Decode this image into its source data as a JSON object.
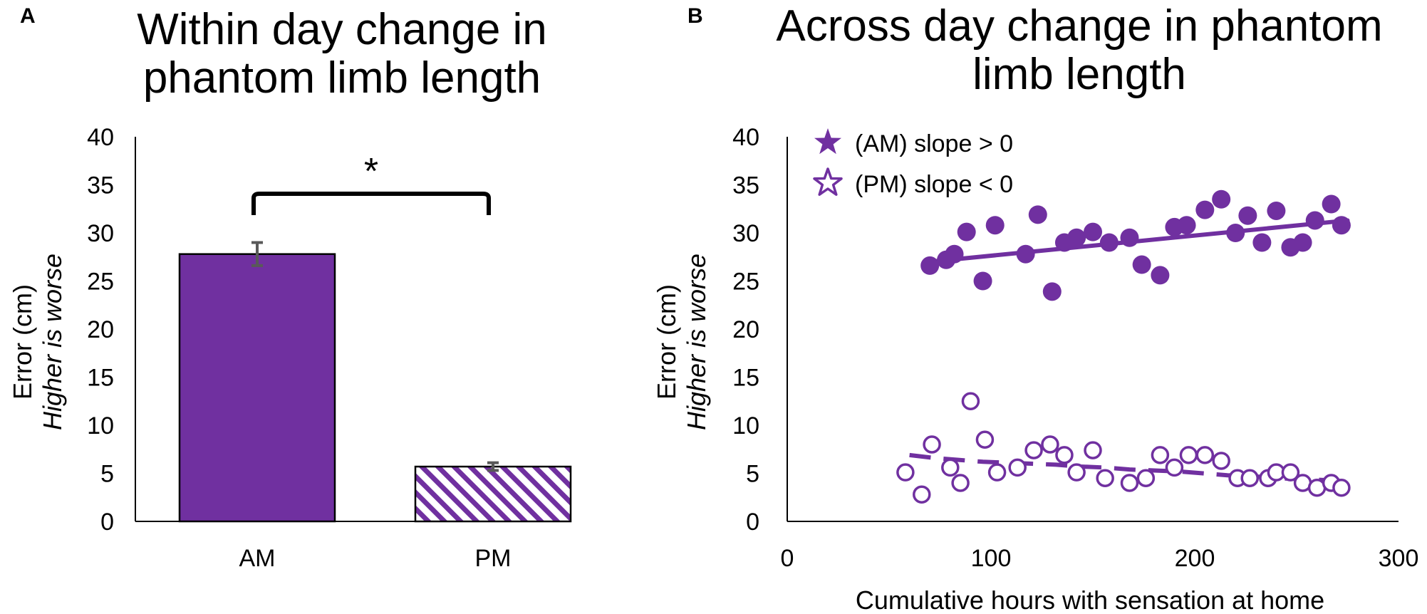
{
  "colors": {
    "purple": "#7030a0",
    "axis": "#000000",
    "errorbar": "#595959"
  },
  "chart_data": [
    {
      "panel": "A",
      "type": "bar",
      "title_lines": [
        "Within day change in",
        "phantom limb length"
      ],
      "ylabel_lines": [
        "Error (cm)",
        "Higher is worse"
      ],
      "xlabel": "",
      "ylim": [
        0,
        40
      ],
      "yticks": [
        "0",
        "5",
        "10",
        "15",
        "20",
        "25",
        "30",
        "35",
        "40"
      ],
      "categories": [
        "AM",
        "PM"
      ],
      "values": [
        27.8,
        5.7
      ],
      "errors": [
        1.2,
        0.4
      ],
      "fills": [
        "solid",
        "hatched"
      ],
      "significance": "*"
    },
    {
      "panel": "B",
      "type": "scatter",
      "title_lines": [
        "Across day change in phantom",
        "limb length"
      ],
      "ylabel_lines": [
        "Error (cm)",
        "Higher is worse"
      ],
      "xlabel": "Cumulative hours with sensation at home",
      "xlim": [
        0,
        300
      ],
      "ylim": [
        0,
        40
      ],
      "xticks": [
        "0",
        "100",
        "200",
        "300"
      ],
      "yticks": [
        "0",
        "5",
        "10",
        "15",
        "20",
        "25",
        "30",
        "35",
        "40"
      ],
      "legend": [
        "(AM) slope > 0",
        "(PM) slope < 0"
      ],
      "series": [
        {
          "name": "AM",
          "marker": "filled-circle",
          "trendline": [
            [
              70,
              27.0
            ],
            [
              275,
              31.3
            ]
          ],
          "points": [
            [
              70,
              26.6
            ],
            [
              78,
              27.2
            ],
            [
              82,
              27.8
            ],
            [
              88,
              30.1
            ],
            [
              96,
              25.0
            ],
            [
              102,
              30.8
            ],
            [
              117,
              27.8
            ],
            [
              123,
              31.9
            ],
            [
              130,
              23.9
            ],
            [
              136,
              29.0
            ],
            [
              142,
              29.5
            ],
            [
              150,
              30.1
            ],
            [
              158,
              29.0
            ],
            [
              168,
              29.5
            ],
            [
              174,
              26.7
            ],
            [
              183,
              25.6
            ],
            [
              190,
              30.6
            ],
            [
              196,
              30.8
            ],
            [
              205,
              32.4
            ],
            [
              213,
              33.5
            ],
            [
              220,
              30.0
            ],
            [
              226,
              31.8
            ],
            [
              233,
              29.0
            ],
            [
              240,
              32.3
            ],
            [
              247,
              28.5
            ],
            [
              253,
              29.0
            ],
            [
              259,
              31.3
            ],
            [
              267,
              33.0
            ],
            [
              272,
              30.8
            ]
          ]
        },
        {
          "name": "PM",
          "marker": "open-circle",
          "trendline": [
            [
              60,
              6.9
            ],
            [
              72,
              6.6
            ],
            [
              84,
              6.4
            ],
            [
              96,
              6.2
            ],
            [
              108,
              6.1
            ],
            [
              120,
              6.0
            ],
            [
              132,
              5.9
            ],
            [
              144,
              5.7
            ],
            [
              156,
              5.6
            ],
            [
              168,
              5.4
            ],
            [
              180,
              5.3
            ],
            [
              192,
              5.2
            ],
            [
              204,
              5.0
            ],
            [
              216,
              4.8
            ],
            [
              228,
              4.7
            ],
            [
              240,
              4.5
            ],
            [
              252,
              4.4
            ],
            [
              264,
              4.3
            ],
            [
              272,
              4.2
            ]
          ],
          "points": [
            [
              58,
              5.1
            ],
            [
              66,
              2.8
            ],
            [
              71,
              8.0
            ],
            [
              80,
              5.6
            ],
            [
              85,
              4.0
            ],
            [
              90,
              12.5
            ],
            [
              97,
              8.5
            ],
            [
              103,
              5.1
            ],
            [
              113,
              5.6
            ],
            [
              121,
              7.4
            ],
            [
              129,
              8.0
            ],
            [
              136,
              6.9
            ],
            [
              142,
              5.1
            ],
            [
              150,
              7.4
            ],
            [
              156,
              4.5
            ],
            [
              168,
              4.0
            ],
            [
              176,
              4.5
            ],
            [
              183,
              6.9
            ],
            [
              190,
              5.6
            ],
            [
              197,
              6.9
            ],
            [
              205,
              6.9
            ],
            [
              213,
              6.3
            ],
            [
              221,
              4.5
            ],
            [
              227,
              4.5
            ],
            [
              236,
              4.5
            ],
            [
              240,
              5.1
            ],
            [
              247,
              5.1
            ],
            [
              253,
              4.0
            ],
            [
              260,
              3.5
            ],
            [
              267,
              4.0
            ],
            [
              272,
              3.5
            ]
          ]
        }
      ]
    }
  ]
}
